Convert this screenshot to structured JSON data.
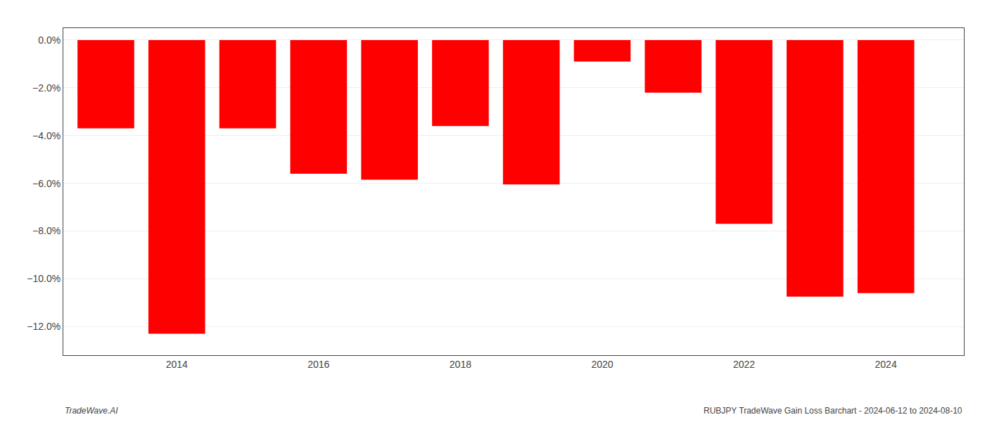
{
  "chart_data": {
    "type": "bar",
    "x": [
      2013,
      2014,
      2015,
      2016,
      2017,
      2018,
      2019,
      2020,
      2021,
      2022,
      2023,
      2024
    ],
    "values": [
      -3.7,
      -12.3,
      -3.7,
      -5.6,
      -5.85,
      -3.6,
      -6.05,
      -0.9,
      -2.2,
      -7.7,
      -10.75,
      -10.6
    ],
    "color": "#ff0000",
    "xlim": [
      2012.4,
      2025.1
    ],
    "xticks": [
      2014,
      2016,
      2018,
      2020,
      2022,
      2024
    ],
    "ylim": [
      -13.2,
      0.5
    ],
    "yticks": [
      {
        "value": 0.0,
        "label": "0.0%"
      },
      {
        "value": -2.0,
        "label": "−2.0%"
      },
      {
        "value": -4.0,
        "label": "−4.0%"
      },
      {
        "value": -6.0,
        "label": "−6.0%"
      },
      {
        "value": -8.0,
        "label": "−8.0%"
      },
      {
        "value": -10.0,
        "label": "−10.0%"
      },
      {
        "value": -12.0,
        "label": "−12.0%"
      }
    ],
    "grid": true,
    "annotations": [
      "TradeWave.AI",
      "RUBJPY TradeWave Gain Loss Barchart - 2024-06-12 to 2024-08-10"
    ]
  }
}
